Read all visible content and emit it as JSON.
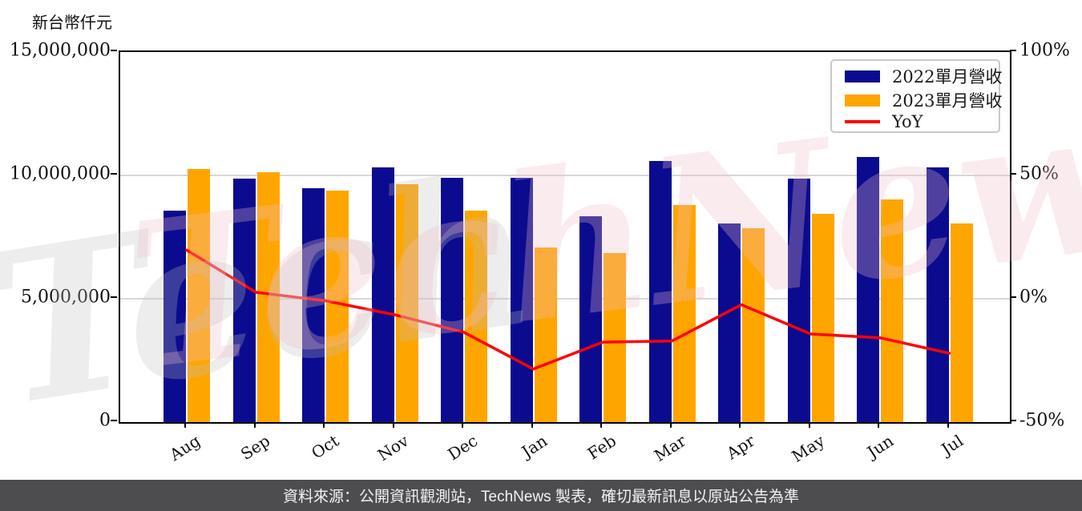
{
  "unit_label": "新台幣仟元",
  "footer_text": "資料來源：公開資訊觀測站，TechNews 製表，確切最新訊息以原站公告為準",
  "watermark": {
    "pink_text": "TechNews",
    "gray_text": "Tech"
  },
  "legend": {
    "items": [
      {
        "label": "2022單月營收",
        "color": "#0b0b8f",
        "marker": "bar"
      },
      {
        "label": "2023單月營收",
        "color": "#ffa500",
        "marker": "bar"
      },
      {
        "label": "YoY",
        "color": "#ff0000",
        "marker": "line"
      }
    ]
  },
  "chart_data": {
    "type": "bar",
    "title": "",
    "categories": [
      "Aug",
      "Sep",
      "Oct",
      "Nov",
      "Dec",
      "Jan",
      "Feb",
      "Mar",
      "Apr",
      "May",
      "Jun",
      "Jul"
    ],
    "series": [
      {
        "name": "2022單月營收",
        "type": "bar",
        "axis": "left",
        "color": "#0b0b8f",
        "values": [
          8580000,
          9870000,
          9480000,
          10320000,
          9910000,
          9910000,
          8330000,
          10600000,
          8060000,
          9860000,
          10740000,
          10320000
        ]
      },
      {
        "name": "2023單月營收",
        "type": "bar",
        "axis": "left",
        "color": "#ffa500",
        "values": [
          10270000,
          10130000,
          9400000,
          9650000,
          8560000,
          7090000,
          6860000,
          8790000,
          7870000,
          8450000,
          9040000,
          8040000
        ]
      },
      {
        "name": "YoY",
        "type": "line",
        "axis": "right",
        "color": "#ff0000",
        "values": [
          19.7,
          2.6,
          -0.8,
          -6.5,
          -13.6,
          -28.5,
          -17.6,
          -17.1,
          -2.4,
          -14.3,
          -15.8,
          -22.1
        ]
      }
    ],
    "left_axis": {
      "label": "新台幣仟元",
      "min": 0,
      "max": 15000000,
      "tick_labels": [
        "15,000,000",
        "10,000,000",
        "5,000,000",
        "0"
      ]
    },
    "right_axis": {
      "min": -50,
      "max": 100,
      "unit": "%",
      "tick_labels": [
        "100%",
        "50%",
        "0%",
        "-50%"
      ]
    },
    "grid": "horizontal",
    "legend_position": "top-right",
    "colors": {
      "bar_2022": "#0b0b8f",
      "bar_2023": "#ffa500",
      "yoy_line": "#ff0000",
      "gridline": "#d8d8d8",
      "footer_bg": "#4d4d4f",
      "footer_text": "#f2f2f2"
    }
  }
}
